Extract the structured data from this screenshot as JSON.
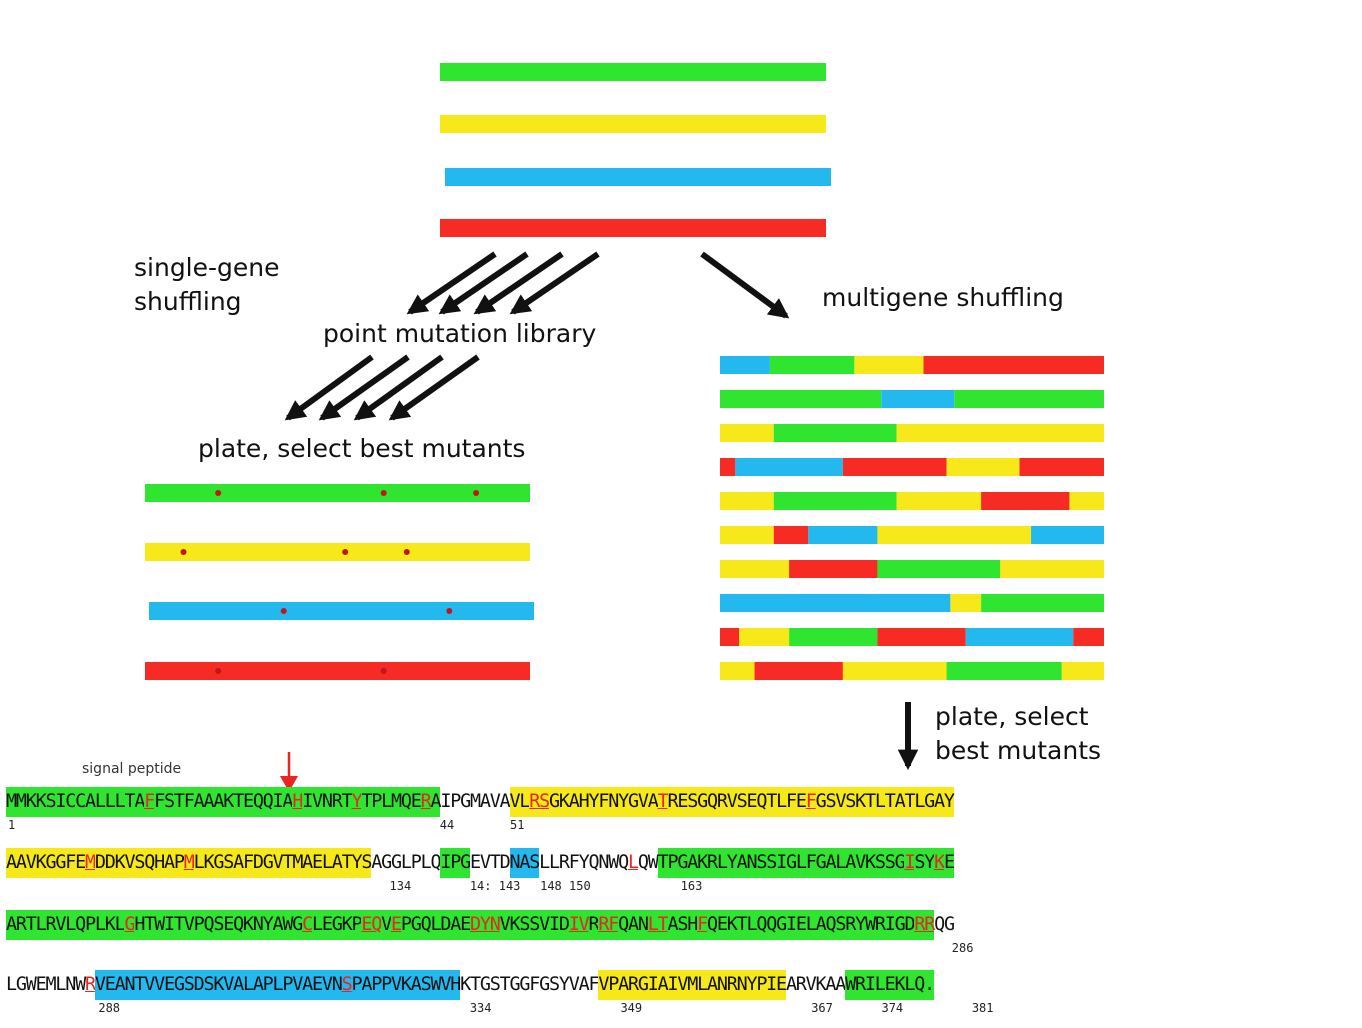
{
  "colors": {
    "green": "#2fe52f",
    "yellow": "#f7e81a",
    "blue": "#23b9ef",
    "red": "#f52b24",
    "arrow": "#111111",
    "mutation": "#e8261f",
    "dot": "#c0161c"
  },
  "labels": {
    "single_gene": [
      "single-gene",
      "shuffling"
    ],
    "point_mutation": "point mutation library",
    "plate_left": "plate, select best mutants",
    "multigene": "multigene shuffling",
    "plate_right": [
      "plate, select",
      "best mutants"
    ],
    "signal_peptide": "signal peptide"
  },
  "parent_genes": [
    "green",
    "yellow",
    "blue",
    "red"
  ],
  "point_mutants": [
    {
      "color": "green",
      "mutations": [
        0.19,
        0.62,
        0.86
      ]
    },
    {
      "color": "yellow",
      "mutations": [
        0.1,
        0.52,
        0.68
      ]
    },
    {
      "color": "blue",
      "mutations": [
        0.35,
        0.78
      ]
    },
    {
      "color": "red",
      "mutations": [
        0.19,
        0.62
      ]
    }
  ],
  "chimeras": [
    [
      [
        "blue",
        0.13
      ],
      [
        "green",
        0.35
      ],
      [
        "yellow",
        0.53
      ],
      [
        "red",
        1
      ]
    ],
    [
      [
        "green",
        0.42
      ],
      [
        "blue",
        0.61
      ],
      [
        "green",
        1
      ]
    ],
    [
      [
        "yellow",
        0.14
      ],
      [
        "green",
        0.46
      ],
      [
        "yellow",
        1
      ]
    ],
    [
      [
        "red",
        0.04
      ],
      [
        "blue",
        0.32
      ],
      [
        "red",
        0.59
      ],
      [
        "yellow",
        0.78
      ],
      [
        "red",
        1
      ]
    ],
    [
      [
        "yellow",
        0.14
      ],
      [
        "green",
        0.46
      ],
      [
        "yellow",
        0.68
      ],
      [
        "red",
        0.91
      ],
      [
        "yellow",
        1
      ]
    ],
    [
      [
        "yellow",
        0.14
      ],
      [
        "red",
        0.23
      ],
      [
        "blue",
        0.41
      ],
      [
        "yellow",
        0.81
      ],
      [
        "blue",
        1
      ]
    ],
    [
      [
        "yellow",
        0.18
      ],
      [
        "red",
        0.41
      ],
      [
        "green",
        0.73
      ],
      [
        "yellow",
        1
      ]
    ],
    [
      [
        "blue",
        0.6
      ],
      [
        "yellow",
        0.68
      ],
      [
        "green",
        1
      ]
    ],
    [
      [
        "red",
        0.05
      ],
      [
        "yellow",
        0.18
      ],
      [
        "green",
        0.41
      ],
      [
        "red",
        0.64
      ],
      [
        "blue",
        0.92
      ],
      [
        "red",
        1
      ]
    ],
    [
      [
        "yellow",
        0.09
      ],
      [
        "red",
        0.32
      ],
      [
        "yellow",
        0.59
      ],
      [
        "green",
        0.89
      ],
      [
        "yellow",
        1
      ]
    ]
  ],
  "sequence": [
    {
      "segments": [
        {
          "c": "green",
          "t": "MMKKSICCALLLTA"
        },
        {
          "c": "green",
          "t": "F",
          "m": 1
        },
        {
          "c": "green",
          "t": "FSTFAAAKTEQQIA"
        },
        {
          "c": "green",
          "t": "H",
          "m": 1
        },
        {
          "c": "green",
          "t": "IVNRT"
        },
        {
          "c": "green",
          "t": "Y",
          "m": 1
        },
        {
          "c": "green",
          "t": "TPLMQE"
        },
        {
          "c": "green",
          "t": "R",
          "m": 1
        },
        {
          "c": "green",
          "t": "A"
        },
        {
          "c": "",
          "t": "IPGMAVA"
        },
        {
          "c": "yellow",
          "t": "VL"
        },
        {
          "c": "yellow",
          "t": "RS",
          "m": 1
        },
        {
          "c": "yellow",
          "t": "GKAHYFNYGVA"
        },
        {
          "c": "yellow",
          "t": "T",
          "m": 1
        },
        {
          "c": "yellow",
          "t": "RESGQRVSEQTLFE"
        },
        {
          "c": "yellow",
          "t": "F",
          "m": 1
        },
        {
          "c": "yellow",
          "t": "GSVSKTLTATLGAY"
        }
      ],
      "numbers": [
        {
          "t": "1",
          "at": 0
        },
        {
          "t": "44",
          "at": 43
        },
        {
          "t": "51",
          "at": 50
        }
      ]
    },
    {
      "segments": [
        {
          "c": "yellow",
          "t": "AAVKGGFE"
        },
        {
          "c": "yellow",
          "t": "M",
          "m": 1
        },
        {
          "c": "yellow",
          "t": "DDKVSQHAP"
        },
        {
          "c": "yellow",
          "t": "M",
          "m": 1
        },
        {
          "c": "yellow",
          "t": "LKGSAFDGVTMAELATYS"
        },
        {
          "c": "",
          "t": "AGGLPLQ"
        },
        {
          "c": "green",
          "t": "IPG"
        },
        {
          "c": "",
          "t": "EVTD"
        },
        {
          "c": "blue",
          "t": "NAS"
        },
        {
          "c": "",
          "t": "LLRFYQNWQ"
        },
        {
          "c": "",
          "t": "L",
          "m": 1
        },
        {
          "c": "",
          "t": "QW"
        },
        {
          "c": "green",
          "t": "TPGAKRLYANSSIGLFGALAVKSSG"
        },
        {
          "c": "green",
          "t": "I",
          "m": 1
        },
        {
          "c": "green",
          "t": "SY"
        },
        {
          "c": "green",
          "t": "K",
          "m": 1
        },
        {
          "c": "green",
          "t": "E"
        }
      ],
      "numbers": [
        {
          "t": "134",
          "at": 38
        },
        {
          "t": "14: 143",
          "at": 46
        },
        {
          "t": "148 150",
          "at": 53
        },
        {
          "t": "163",
          "at": 67
        }
      ]
    },
    {
      "segments": [
        {
          "c": "green",
          "t": "ARTLRVLQPLKL"
        },
        {
          "c": "green",
          "t": "G",
          "m": 1
        },
        {
          "c": "green",
          "t": "HTWITVPQSEQKNYAWG"
        },
        {
          "c": "green",
          "t": "C",
          "m": 1
        },
        {
          "c": "green",
          "t": "LEGKP"
        },
        {
          "c": "green",
          "t": "EQ",
          "m": 1
        },
        {
          "c": "green",
          "t": "V"
        },
        {
          "c": "green",
          "t": "E",
          "m": 1
        },
        {
          "c": "green",
          "t": "PGQLDAE"
        },
        {
          "c": "green",
          "t": "DY",
          "m": 1
        },
        {
          "c": "green",
          "t": "N",
          "m": 1
        },
        {
          "c": "green",
          "t": "VKSSVID"
        },
        {
          "c": "green",
          "t": "IV",
          "m": 1
        },
        {
          "c": "green",
          "t": "R"
        },
        {
          "c": "green",
          "t": "RF",
          "m": 1
        },
        {
          "c": "green",
          "t": "QAN"
        },
        {
          "c": "green",
          "t": "LT",
          "m": 1
        },
        {
          "c": "green",
          "t": "ASH"
        },
        {
          "c": "green",
          "t": "F",
          "m": 1
        },
        {
          "c": "green",
          "t": "QEKTLQQGIELAQSRYWRIGD"
        },
        {
          "c": "green",
          "t": "RR",
          "m": 1
        },
        {
          "c": "",
          "t": "QG"
        }
      ],
      "numbers": [
        {
          "t": "286",
          "at": 94
        }
      ]
    },
    {
      "segments": [
        {
          "c": "",
          "t": "LGWEMLNW"
        },
        {
          "c": "",
          "t": "R",
          "m": 1
        },
        {
          "c": "blue",
          "t": "VEANTVVEGSDSKVALAPLPVAEVN"
        },
        {
          "c": "blue",
          "t": "S",
          "m": 1
        },
        {
          "c": "blue",
          "t": "PAPPVKASWVH"
        },
        {
          "c": "",
          "t": "KTGSTGGFGSYVAF"
        },
        {
          "c": "yellow",
          "t": "VPARGIAIVMLANRNYPIE"
        },
        {
          "c": "",
          "t": "ARVKAA"
        },
        {
          "c": "green",
          "t": "WRILEKLQ."
        }
      ],
      "numbers": [
        {
          "t": "288",
          "at": 9
        },
        {
          "t": "334",
          "at": 46
        },
        {
          "t": "349",
          "at": 61
        },
        {
          "t": "367",
          "at": 80
        },
        {
          "t": "374",
          "at": 87
        },
        {
          "t": "381",
          "at": 96
        }
      ]
    }
  ]
}
